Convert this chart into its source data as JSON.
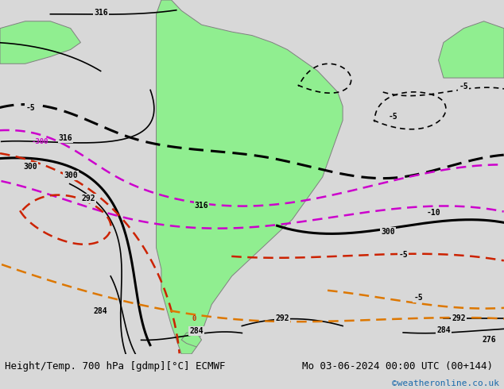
{
  "title_left": "Height/Temp. 700 hPa [gdmp][°C] ECMWF",
  "title_right": "Mo 03-06-2024 00:00 UTC (00+144)",
  "watermark": "©weatheronline.co.uk",
  "bg_color": "#d8d8d8",
  "land_color": "#90ee90",
  "land_border_color": "#808080",
  "bottom_bar_color": "#f0f0f0",
  "text_color": "#000000",
  "title_fontsize": 9,
  "watermark_color": "#1a6aab",
  "fig_width": 6.34,
  "fig_height": 4.9,
  "dpi": 100
}
